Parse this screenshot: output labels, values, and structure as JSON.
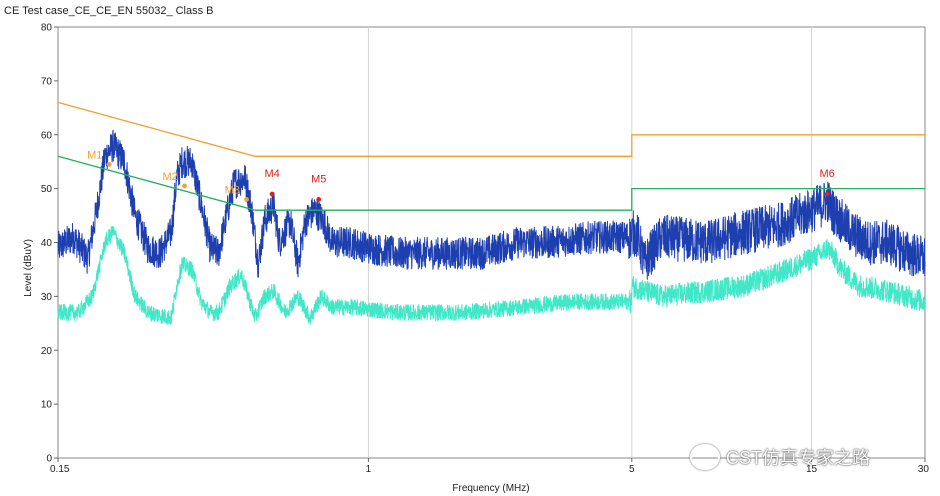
{
  "window": {
    "title": "CE Test case_CE_CE_EN 55032_ Class B"
  },
  "watermark": {
    "text": "CST仿真专家之路"
  },
  "chart_data": {
    "type": "line",
    "xlabel": "Frequency (MHz)",
    "ylabel": "Level (dBuV)",
    "xscale": "log",
    "xlim": [
      0.15,
      30
    ],
    "ylim": [
      0,
      80
    ],
    "x_ticks": [
      {
        "value": 0.15,
        "label": "0.15"
      },
      {
        "value": 1,
        "label": "1"
      },
      {
        "value": 5,
        "label": "5"
      },
      {
        "value": 15,
        "label": "15"
      },
      {
        "value": 30,
        "label": "30"
      }
    ],
    "y_ticks": [
      0,
      10,
      20,
      30,
      40,
      50,
      60,
      70,
      80
    ],
    "grid": "vertical lines at 1, 5, 15 MHz",
    "colors": {
      "qp_limit": "#f0a030",
      "avg_limit": "#22b060",
      "peak_trace": "#1e3fb0",
      "avg_trace": "#40e8c8",
      "marker_red": "#e02020",
      "marker_orange": "#f0a030"
    },
    "series": [
      {
        "key": "qp_limit",
        "points": [
          [
            0.15,
            66
          ],
          [
            0.5,
            56
          ],
          [
            5,
            56
          ],
          [
            5,
            60
          ],
          [
            30,
            60
          ]
        ]
      },
      {
        "key": "avg_limit",
        "points": [
          [
            0.15,
            56
          ],
          [
            0.5,
            46
          ],
          [
            5,
            46
          ],
          [
            5,
            50
          ],
          [
            30,
            50
          ]
        ]
      },
      {
        "key": "peak_trace",
        "envelope": [
          [
            0.15,
            39
          ],
          [
            0.165,
            41
          ],
          [
            0.18,
            37
          ],
          [
            0.19,
            46
          ],
          [
            0.2,
            56
          ],
          [
            0.21,
            58
          ],
          [
            0.225,
            55
          ],
          [
            0.24,
            45
          ],
          [
            0.26,
            39
          ],
          [
            0.28,
            38
          ],
          [
            0.3,
            42
          ],
          [
            0.31,
            52
          ],
          [
            0.32,
            55
          ],
          [
            0.34,
            55
          ],
          [
            0.36,
            47
          ],
          [
            0.38,
            39
          ],
          [
            0.4,
            38
          ],
          [
            0.42,
            45
          ],
          [
            0.44,
            51
          ],
          [
            0.47,
            52
          ],
          [
            0.49,
            46
          ],
          [
            0.51,
            36
          ],
          [
            0.53,
            44
          ],
          [
            0.56,
            47
          ],
          [
            0.58,
            40
          ],
          [
            0.62,
            44
          ],
          [
            0.65,
            36
          ],
          [
            0.68,
            44
          ],
          [
            0.72,
            46
          ],
          [
            0.76,
            44
          ],
          [
            0.8,
            40
          ],
          [
            0.9,
            40
          ],
          [
            1.0,
            39
          ],
          [
            1.2,
            38
          ],
          [
            1.5,
            38
          ],
          [
            2.0,
            38
          ],
          [
            2.5,
            40
          ],
          [
            3.0,
            40
          ],
          [
            4.0,
            41
          ],
          [
            4.99,
            41
          ],
          [
            5.0,
            42
          ],
          [
            5.2,
            41
          ],
          [
            5.4,
            36
          ],
          [
            5.6,
            38
          ],
          [
            6,
            41
          ],
          [
            8,
            40
          ],
          [
            10,
            42
          ],
          [
            12,
            43
          ],
          [
            14,
            45
          ],
          [
            15,
            46
          ],
          [
            16,
            47
          ],
          [
            16.5,
            48
          ],
          [
            17,
            46
          ],
          [
            18,
            44
          ],
          [
            19,
            42
          ],
          [
            21,
            40
          ],
          [
            24,
            40
          ],
          [
            27,
            38
          ],
          [
            30,
            37
          ]
        ],
        "jitter": 3
      },
      {
        "key": "avg_trace",
        "envelope": [
          [
            0.15,
            27
          ],
          [
            0.17,
            27
          ],
          [
            0.185,
            30
          ],
          [
            0.2,
            40
          ],
          [
            0.21,
            42
          ],
          [
            0.225,
            38
          ],
          [
            0.24,
            30
          ],
          [
            0.26,
            27
          ],
          [
            0.3,
            26
          ],
          [
            0.31,
            32
          ],
          [
            0.32,
            36
          ],
          [
            0.34,
            35
          ],
          [
            0.36,
            29
          ],
          [
            0.38,
            27
          ],
          [
            0.4,
            27
          ],
          [
            0.43,
            32
          ],
          [
            0.46,
            34
          ],
          [
            0.48,
            30
          ],
          [
            0.5,
            26
          ],
          [
            0.53,
            30
          ],
          [
            0.56,
            31
          ],
          [
            0.6,
            27
          ],
          [
            0.65,
            30
          ],
          [
            0.7,
            26
          ],
          [
            0.75,
            30
          ],
          [
            0.8,
            28
          ],
          [
            0.9,
            28
          ],
          [
            1.2,
            27
          ],
          [
            1.8,
            27
          ],
          [
            2.5,
            28
          ],
          [
            3.5,
            29
          ],
          [
            4.99,
            29
          ],
          [
            5.0,
            32
          ],
          [
            5.4,
            31
          ],
          [
            6,
            30
          ],
          [
            8,
            31
          ],
          [
            10,
            32
          ],
          [
            12,
            34
          ],
          [
            14,
            36
          ],
          [
            16,
            38
          ],
          [
            16.5,
            39
          ],
          [
            17,
            38
          ],
          [
            18,
            35
          ],
          [
            20,
            32
          ],
          [
            24,
            31
          ],
          [
            30,
            29
          ]
        ],
        "jitter": 1.5
      }
    ],
    "markers": [
      {
        "label": "M1",
        "x": 0.205,
        "y": 54.5,
        "color": "orange"
      },
      {
        "label": "M2",
        "x": 0.325,
        "y": 50.5,
        "color": "orange"
      },
      {
        "label": "M3",
        "x": 0.475,
        "y": 48.0,
        "color": "orange"
      },
      {
        "label": "M4",
        "x": 0.555,
        "y": 49.0,
        "color": "red"
      },
      {
        "label": "M5",
        "x": 0.738,
        "y": 48.0,
        "color": "red"
      },
      {
        "label": "M6",
        "x": 16.5,
        "y": 49.0,
        "color": "red"
      }
    ]
  }
}
